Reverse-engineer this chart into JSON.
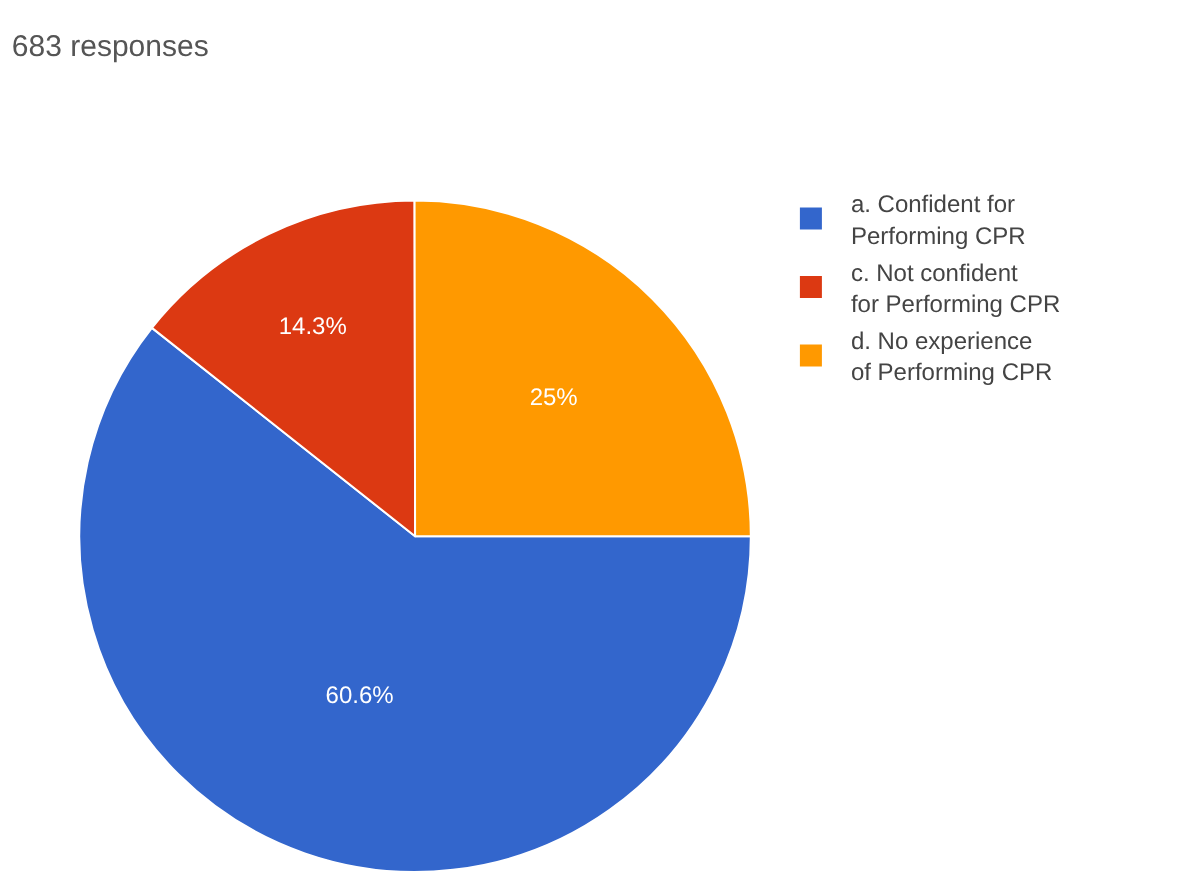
{
  "chart_data": {
    "type": "pie",
    "title": "683 responses",
    "categories": [
      "a. Confident for Performing CPR",
      "c. Not confident for Performing CPR",
      "d. No experience of Performing CPR"
    ],
    "values": [
      60.6,
      14.3,
      25
    ],
    "value_labels": [
      "60.6%",
      "14.3%",
      "25%"
    ],
    "colors": [
      "#3366cc",
      "#dc3912",
      "#ff9900"
    ],
    "legend": "right"
  }
}
